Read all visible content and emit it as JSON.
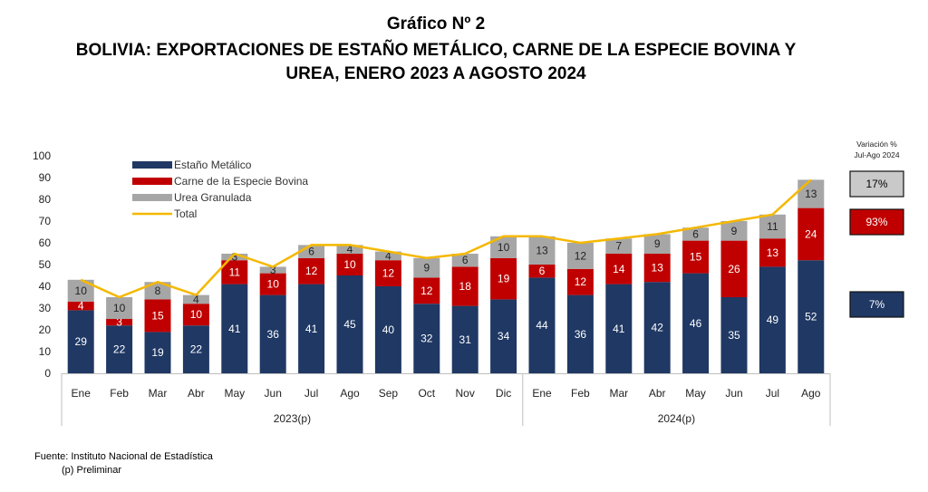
{
  "header": {
    "title": "Gráfico Nº 2",
    "subtitle_line1": "BOLIVIA: EXPORTACIONES DE ESTAÑO METÁLICO, CARNE DE LA ESPECIE BOVINA Y",
    "subtitle_line2": "UREA, ENERO 2023 A AGOSTO 2024"
  },
  "footer": {
    "source": "Fuente: Instituto Nacional de Estadística",
    "note": "(p) Preliminar"
  },
  "chart_data": {
    "type": "bar",
    "stacked": true,
    "categories": [
      "Ene",
      "Feb",
      "Mar",
      "Abr",
      "May",
      "Jun",
      "Jul",
      "Ago",
      "Sep",
      "Oct",
      "Nov",
      "Dic",
      "Ene",
      "Feb",
      "Mar",
      "Abr",
      "May",
      "Jun",
      "Jul",
      "Ago"
    ],
    "groups": [
      {
        "label": "2023(p)",
        "count": 12
      },
      {
        "label": "2024(p)",
        "count": 8
      }
    ],
    "ylim": [
      0,
      100
    ],
    "yticks": [
      0,
      10,
      20,
      30,
      40,
      50,
      60,
      70,
      80,
      90,
      100
    ],
    "legend_position": "top-left",
    "grid": false,
    "series": [
      {
        "name": "Estaño Metálico",
        "color": "#1f3864",
        "label_color": "#ffffff",
        "values": [
          29,
          22,
          19,
          22,
          41,
          36,
          41,
          45,
          40,
          32,
          31,
          34,
          44,
          36,
          41,
          42,
          46,
          35,
          49,
          52
        ]
      },
      {
        "name": "Carne de la Especie Bovina",
        "color": "#c00000",
        "label_color": "#ffffff",
        "values": [
          4,
          3,
          15,
          10,
          11,
          10,
          12,
          10,
          12,
          12,
          18,
          19,
          6,
          12,
          14,
          13,
          15,
          26,
          13,
          24
        ]
      },
      {
        "name": "Urea Granulada",
        "color": "#a6a6a6",
        "label_color": "#222222",
        "values": [
          10,
          10,
          8,
          4,
          3,
          3,
          6,
          4,
          4,
          9,
          6,
          10,
          13,
          12,
          7,
          9,
          6,
          9,
          11,
          13
        ]
      }
    ],
    "total_series": {
      "name": "Total",
      "color": "#f5b800",
      "values": [
        43,
        35,
        42,
        36,
        55,
        49,
        59,
        59,
        56,
        53,
        55,
        63,
        63,
        60,
        62,
        64,
        67,
        70,
        73,
        89
      ]
    },
    "variation_box": {
      "title_line1": "Variación %",
      "title_line2": "Jul-Ago 2024",
      "items": [
        {
          "label": "17%",
          "color": "#c9c9c9",
          "text_color": "#000000"
        },
        {
          "label": "93%",
          "color": "#c00000",
          "text_color": "#ffffff"
        },
        {
          "label": "7%",
          "color": "#1f3864",
          "text_color": "#ffffff"
        }
      ]
    }
  }
}
